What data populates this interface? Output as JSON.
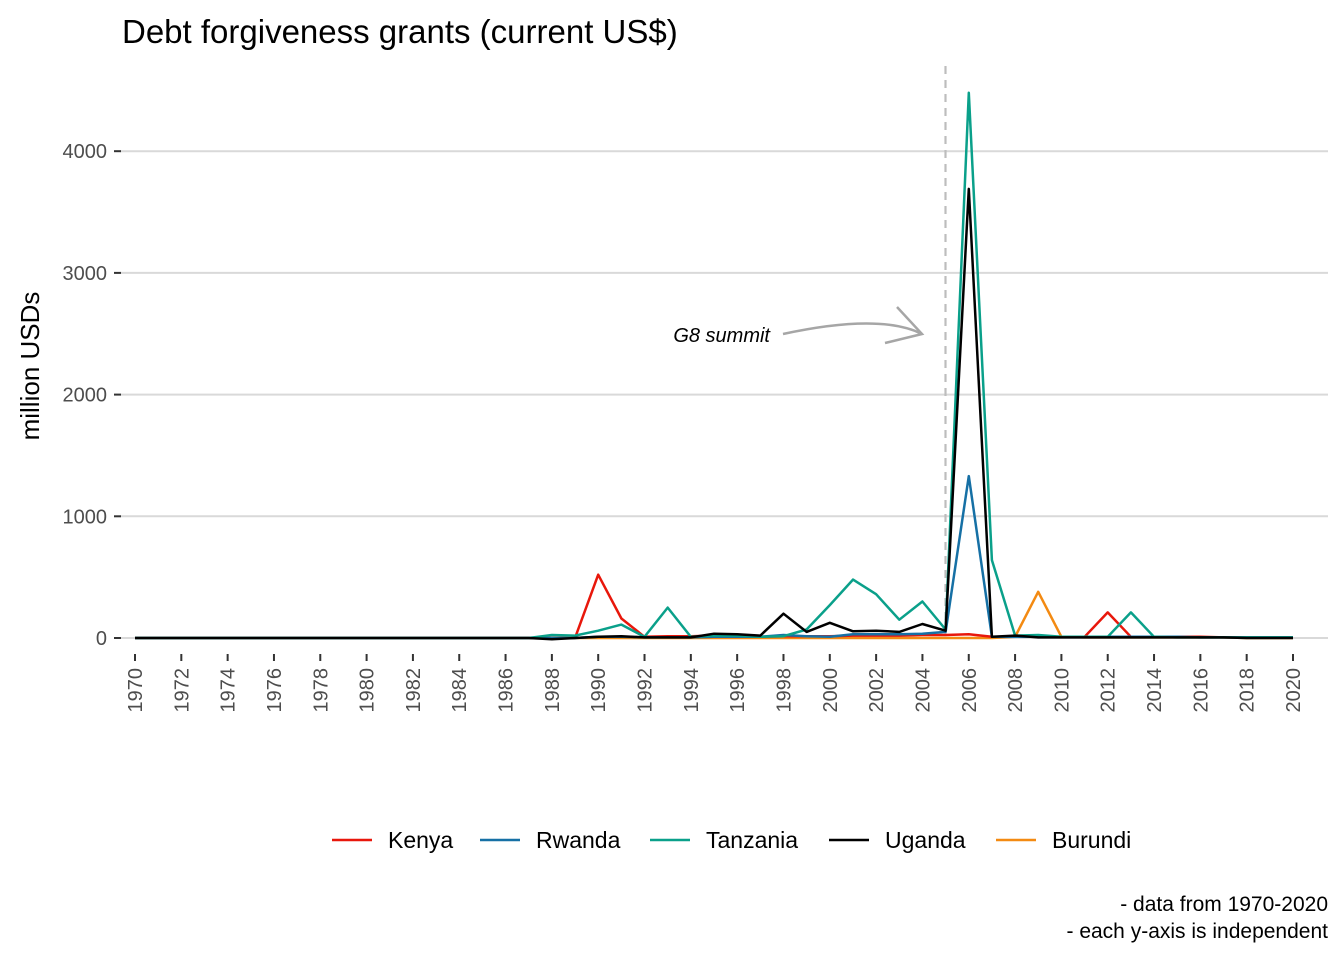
{
  "chart_data": {
    "type": "line",
    "title": "Debt forgiveness grants (current US$)",
    "xlabel": "",
    "ylabel": "million USDs",
    "xlim": [
      1970,
      2020
    ],
    "ylim": [
      0,
      4700
    ],
    "x_ticks": [
      "1970",
      "1972",
      "1974",
      "1976",
      "1978",
      "1980",
      "1982",
      "1984",
      "1986",
      "1988",
      "1990",
      "1992",
      "1994",
      "1996",
      "1998",
      "2000",
      "2002",
      "2004",
      "2006",
      "2008",
      "2010",
      "2012",
      "2014",
      "2016",
      "2018",
      "2020"
    ],
    "y_ticks": [
      "0",
      "1000",
      "2000",
      "3000",
      "4000"
    ],
    "grid": "horizontal",
    "legend_position": "bottom",
    "x": [
      1970,
      1971,
      1972,
      1973,
      1974,
      1975,
      1976,
      1977,
      1978,
      1979,
      1980,
      1981,
      1982,
      1983,
      1984,
      1985,
      1986,
      1987,
      1988,
      1989,
      1990,
      1991,
      1992,
      1993,
      1994,
      1995,
      1996,
      1997,
      1998,
      1999,
      2000,
      2001,
      2002,
      2003,
      2004,
      2005,
      2006,
      2007,
      2008,
      2009,
      2010,
      2011,
      2012,
      2013,
      2014,
      2015,
      2016,
      2017,
      2018,
      2019,
      2020
    ],
    "series": [
      {
        "name": "Kenya",
        "color": "#e8170b",
        "values": [
          0,
          0,
          0,
          0,
          0,
          0,
          0,
          0,
          0,
          0,
          0,
          0,
          0,
          0,
          0,
          0,
          0,
          0,
          0,
          0,
          520,
          160,
          10,
          15,
          15,
          20,
          20,
          10,
          15,
          15,
          15,
          20,
          20,
          20,
          25,
          25,
          30,
          10,
          10,
          10,
          10,
          10,
          210,
          10,
          10,
          10,
          10,
          5,
          5,
          5,
          5
        ]
      },
      {
        "name": "Rwanda",
        "color": "#1670a5",
        "values": [
          0,
          0,
          0,
          0,
          0,
          0,
          0,
          0,
          0,
          0,
          0,
          0,
          0,
          0,
          0,
          0,
          0,
          0,
          0,
          0,
          10,
          10,
          5,
          5,
          5,
          10,
          10,
          10,
          25,
          15,
          10,
          30,
          30,
          30,
          35,
          50,
          1330,
          10,
          10,
          10,
          10,
          10,
          10,
          10,
          10,
          10,
          5,
          5,
          5,
          5,
          5
        ]
      },
      {
        "name": "Tanzania",
        "color": "#0aa08a",
        "values": [
          0,
          0,
          0,
          0,
          0,
          0,
          0,
          0,
          0,
          0,
          0,
          0,
          0,
          0,
          0,
          0,
          0,
          0,
          25,
          20,
          60,
          110,
          10,
          250,
          10,
          20,
          20,
          10,
          15,
          70,
          270,
          480,
          360,
          150,
          300,
          70,
          4480,
          640,
          20,
          25,
          10,
          10,
          10,
          210,
          10,
          5,
          5,
          5,
          5,
          5,
          5
        ]
      },
      {
        "name": "Uganda",
        "color": "#000000",
        "values": [
          0,
          0,
          0,
          0,
          0,
          0,
          0,
          0,
          0,
          0,
          0,
          0,
          0,
          0,
          0,
          0,
          0,
          0,
          -10,
          0,
          10,
          15,
          5,
          5,
          5,
          35,
          30,
          20,
          200,
          50,
          125,
          55,
          60,
          50,
          115,
          60,
          3690,
          10,
          20,
          5,
          5,
          5,
          5,
          5,
          5,
          5,
          5,
          5,
          0,
          0,
          0
        ]
      },
      {
        "name": "Burundi",
        "color": "#f38a12",
        "values": [
          0,
          0,
          0,
          0,
          0,
          0,
          0,
          0,
          0,
          0,
          0,
          0,
          0,
          0,
          0,
          0,
          0,
          0,
          0,
          0,
          0,
          0,
          0,
          0,
          0,
          0,
          0,
          0,
          0,
          0,
          0,
          0,
          0,
          0,
          0,
          0,
          0,
          0,
          10,
          380,
          10,
          5,
          5,
          5,
          5,
          5,
          5,
          5,
          0,
          0,
          0
        ]
      }
    ],
    "annotations": [
      {
        "text": "G8 summit",
        "x": 2005
      }
    ],
    "caption_lines": [
      "- data from 1970-2020",
      "- each y-axis is independent"
    ]
  }
}
